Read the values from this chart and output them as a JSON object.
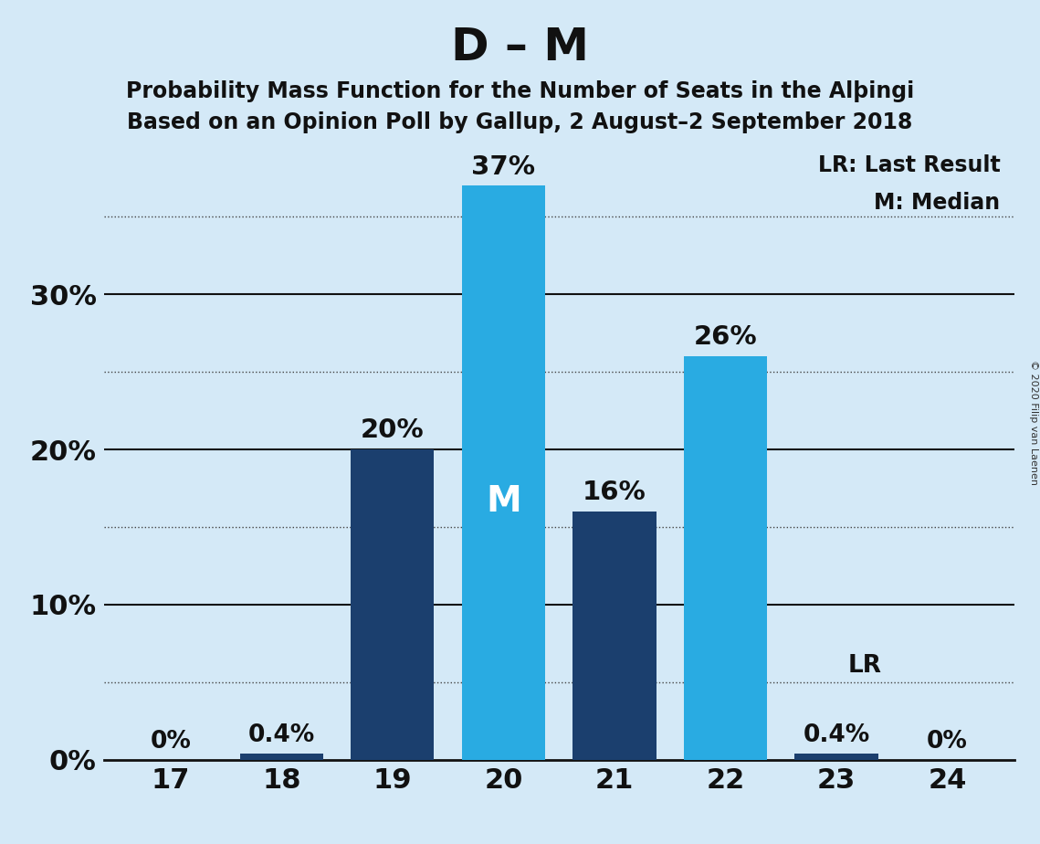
{
  "title": "D – M",
  "subtitle1": "Probability Mass Function for the Number of Seats in the Alþingi",
  "subtitle2": "Based on an Opinion Poll by Gallup, 2 August–2 September 2018",
  "copyright": "© 2020 Filip van Laenen",
  "categories": [
    17,
    18,
    19,
    20,
    21,
    22,
    23,
    24
  ],
  "values": [
    0.0,
    0.4,
    20.0,
    37.0,
    16.0,
    26.0,
    0.4,
    0.0
  ],
  "labels": [
    "0%",
    "0.4%",
    "20%",
    "37%",
    "16%",
    "26%",
    "0.4%",
    "0%"
  ],
  "bar_colors": [
    "#29ABE2",
    "#1B3F6E",
    "#1B3F6E",
    "#29ABE2",
    "#1B3F6E",
    "#29ABE2",
    "#1B3F6E",
    "#29ABE2"
  ],
  "median_bar": 20,
  "median_label": "M",
  "lr_value": 5.0,
  "lr_bar_idx": 6,
  "lr_label": "LR",
  "legend_lr": "LR: Last Result",
  "legend_m": "M: Median",
  "background_color": "#D4E9F7",
  "ytick_labels": [
    0,
    10,
    20,
    30
  ],
  "solid_lines": [
    10,
    20,
    30
  ],
  "dotted_lines": [
    5,
    15,
    25,
    35
  ],
  "ylim": [
    0,
    40
  ],
  "grid_color": "#111111",
  "dotted_color": "#444444",
  "title_fontsize": 36,
  "subtitle_fontsize": 17,
  "tick_fontsize": 22,
  "label_fontsize": 19,
  "legend_fontsize": 17
}
